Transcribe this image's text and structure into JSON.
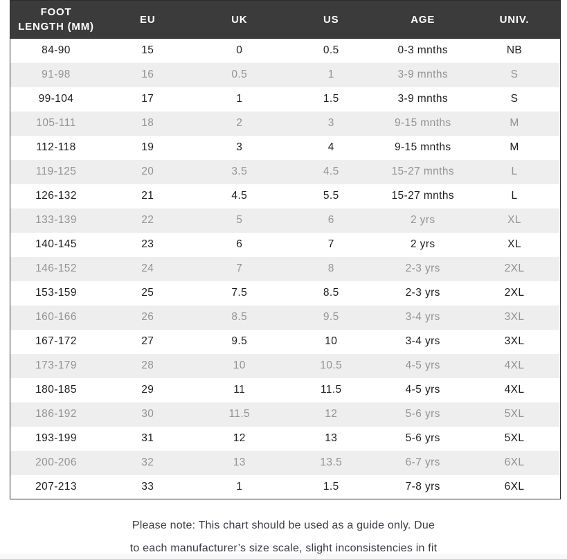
{
  "chart_data": {
    "type": "table",
    "columns": [
      "FOOT LENGTH (MM)",
      "EU",
      "UK",
      "US",
      "AGE",
      "UNIV."
    ],
    "rows": [
      [
        "84-90",
        "15",
        "0",
        "0.5",
        "0-3 mnths",
        "NB"
      ],
      [
        "91-98",
        "16",
        "0.5",
        "1",
        "3-9 mnths",
        "S"
      ],
      [
        "99-104",
        "17",
        "1",
        "1.5",
        "3-9 mnths",
        "S"
      ],
      [
        "105-111",
        "18",
        "2",
        "3",
        "9-15 mnths",
        "M"
      ],
      [
        "112-118",
        "19",
        "3",
        "4",
        "9-15 mnths",
        "M"
      ],
      [
        "119-125",
        "20",
        "3.5",
        "4.5",
        "15-27 mnths",
        "L"
      ],
      [
        "126-132",
        "21",
        "4.5",
        "5.5",
        "15-27 mnths",
        "L"
      ],
      [
        "133-139",
        "22",
        "5",
        "6",
        "2 yrs",
        "XL"
      ],
      [
        "140-145",
        "23",
        "6",
        "7",
        "2 yrs",
        "XL"
      ],
      [
        "146-152",
        "24",
        "7",
        "8",
        "2-3 yrs",
        "2XL"
      ],
      [
        "153-159",
        "25",
        "7.5",
        "8.5",
        "2-3 yrs",
        "2XL"
      ],
      [
        "160-166",
        "26",
        "8.5",
        "9.5",
        "3-4 yrs",
        "3XL"
      ],
      [
        "167-172",
        "27",
        "9.5",
        "10",
        "3-4 yrs",
        "3XL"
      ],
      [
        "173-179",
        "28",
        "10",
        "10.5",
        "4-5 yrs",
        "4XL"
      ],
      [
        "180-185",
        "29",
        "11",
        "11.5",
        "4-5 yrs",
        "4XL"
      ],
      [
        "186-192",
        "30",
        "11.5",
        "12",
        "5-6 yrs",
        "5XL"
      ],
      [
        "193-199",
        "31",
        "12",
        "13",
        "5-6 yrs",
        "5XL"
      ],
      [
        "200-206",
        "32",
        "13",
        "13.5",
        "6-7 yrs",
        "6XL"
      ],
      [
        "207-213",
        "33",
        "1",
        "1.5",
        "7-8 yrs",
        "6XL"
      ]
    ],
    "layout": {
      "striped": true,
      "header_position": "top",
      "column_alignment": "center"
    }
  },
  "note": {
    "lines": [
      "Please note: This chart should be used as a guide only. Due",
      "to each manufacturer’s size scale, slight inconsistencies in fit"
    ]
  },
  "colors": {
    "header_bg": "#3b3b3b",
    "header_text": "#ffffff",
    "row_bg": "#ffffff",
    "row_alt_bg": "#eeeeee",
    "row_text": "#1d1d1d",
    "row_alt_text": "#939393",
    "note_text": "#3a3a44",
    "table_border": "#2d2d2d"
  }
}
